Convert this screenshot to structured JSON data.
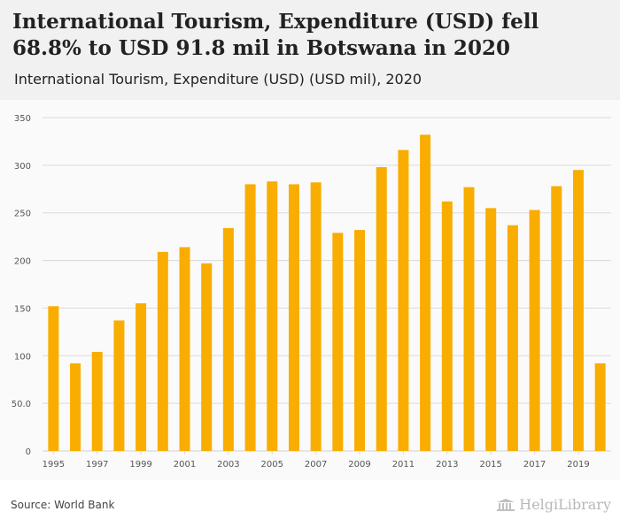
{
  "header": {
    "title": "International Tourism, Expenditure (USD) fell 68.8% to USD 91.8 mil in Botswana in 2020",
    "subtitle": "International Tourism, Expenditure (USD) (USD mil), 2020"
  },
  "footer": {
    "source": "Source: World Bank",
    "logo_text": "HelgiLibrary"
  },
  "colors": {
    "bar": "#f9ad00",
    "grid": "#d9d9d9",
    "axis_text": "#555555",
    "header_bg": "#f1f1f1",
    "plot_bg": "#fafafa"
  },
  "chart_data": {
    "type": "bar",
    "title": "International Tourism, Expenditure (USD) (USD mil)",
    "xlabel": "",
    "ylabel": "",
    "categories": [
      "1995",
      "1996",
      "1997",
      "1998",
      "1999",
      "2000",
      "2001",
      "2002",
      "2003",
      "2004",
      "2005",
      "2006",
      "2007",
      "2008",
      "2009",
      "2010",
      "2011",
      "2012",
      "2013",
      "2014",
      "2015",
      "2016",
      "2017",
      "2018",
      "2019",
      "2020"
    ],
    "values": [
      152,
      92,
      104,
      137,
      155,
      209,
      214,
      197,
      234,
      280,
      283,
      280,
      282,
      229,
      232,
      298,
      316,
      332,
      262,
      277,
      255,
      237,
      253,
      278,
      295,
      92
    ],
    "x_tick_labels": [
      "1995",
      "1997",
      "1999",
      "2001",
      "2003",
      "2005",
      "2007",
      "2009",
      "2011",
      "2013",
      "2015",
      "2017",
      "2019"
    ],
    "y_tick_labels": [
      "0",
      "50.0",
      "100",
      "150",
      "200",
      "250",
      "300",
      "350"
    ],
    "y_ticks": [
      0,
      50,
      100,
      150,
      200,
      250,
      300,
      350
    ],
    "ylim": [
      0,
      350
    ],
    "grid": true,
    "legend": "none"
  }
}
